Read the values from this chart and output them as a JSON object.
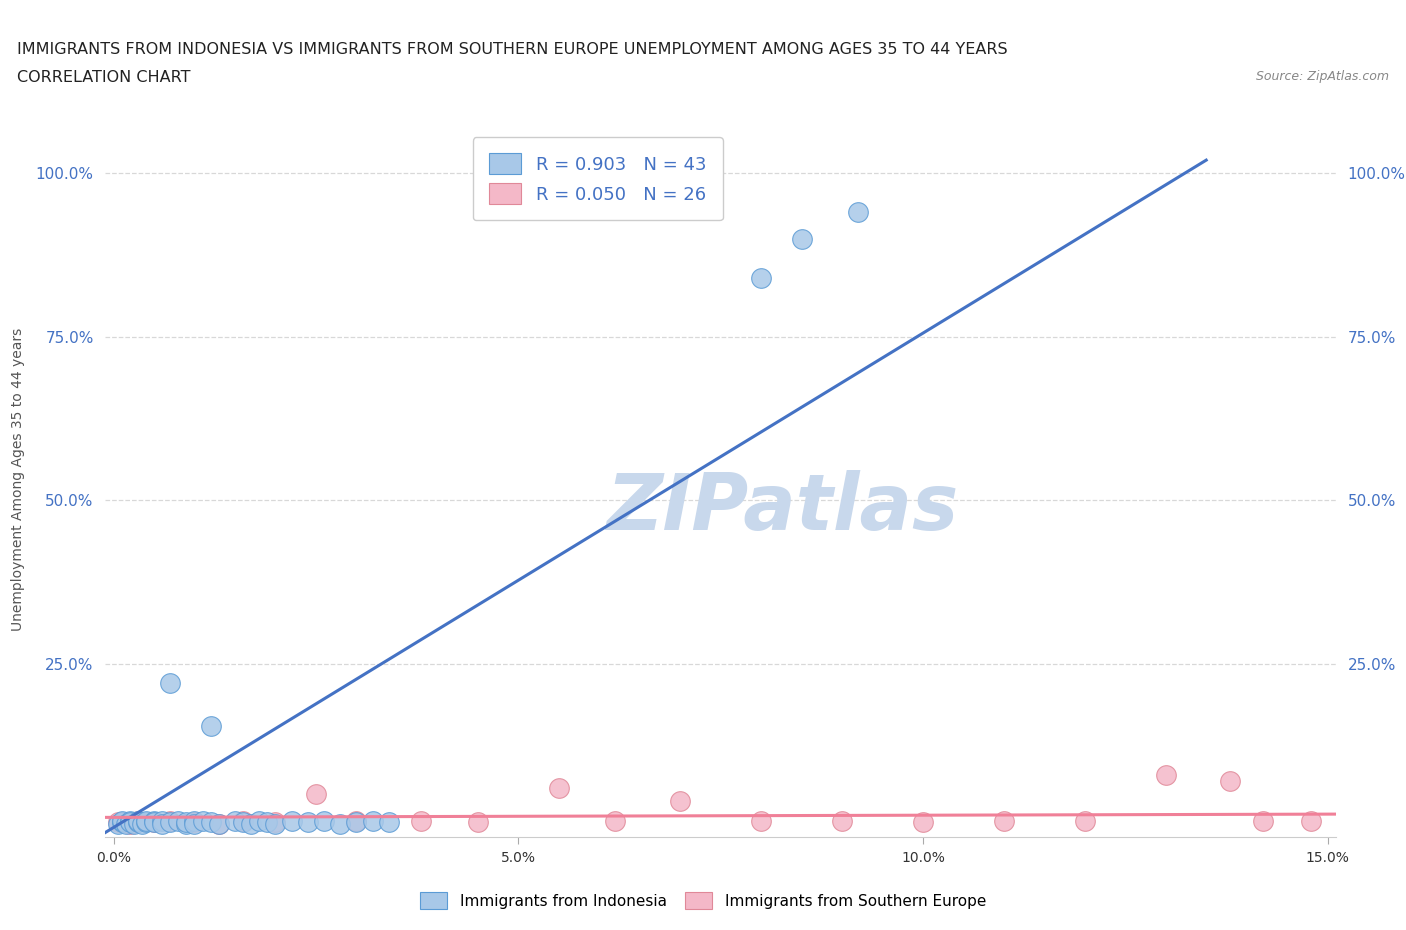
{
  "title_line1": "IMMIGRANTS FROM INDONESIA VS IMMIGRANTS FROM SOUTHERN EUROPE UNEMPLOYMENT AMONG AGES 35 TO 44 YEARS",
  "title_line2": "CORRELATION CHART",
  "source_text": "Source: ZipAtlas.com",
  "ylabel": "Unemployment Among Ages 35 to 44 years",
  "xlim": [
    -0.001,
    0.151
  ],
  "ylim": [
    -0.015,
    1.08
  ],
  "xtick_vals": [
    0.0,
    0.05,
    0.1,
    0.15
  ],
  "xtick_labels": [
    "0.0%",
    "5.0%",
    "10.0%",
    "15.0%"
  ],
  "ytick_vals": [
    0.25,
    0.5,
    0.75,
    1.0
  ],
  "ytick_labels": [
    "25.0%",
    "50.0%",
    "75.0%",
    "100.0%"
  ],
  "R_indonesia": 0.903,
  "N_indonesia": 43,
  "R_s_europe": 0.05,
  "N_s_europe": 26,
  "indonesia_fill": "#a8c8e8",
  "indonesia_edge": "#5b9bd5",
  "s_europe_fill": "#f4b8c8",
  "s_europe_edge": "#e08898",
  "indonesia_line_color": "#4472c4",
  "s_europe_line_color": "#f08098",
  "watermark_text": "ZIPatlas",
  "watermark_color": "#c8d8ec",
  "legend_label_indonesia": "Immigrants from Indonesia",
  "legend_label_s_europe": "Immigrants from Southern Europe",
  "indonesia_x": [
    0.0005,
    0.001,
    0.001,
    0.0015,
    0.002,
    0.002,
    0.0025,
    0.003,
    0.003,
    0.0035,
    0.004,
    0.004,
    0.005,
    0.005,
    0.006,
    0.006,
    0.007,
    0.008,
    0.009,
    0.009,
    0.01,
    0.01,
    0.011,
    0.012,
    0.013,
    0.015,
    0.016,
    0.017,
    0.018,
    0.019,
    0.02,
    0.022,
    0.024,
    0.026,
    0.028,
    0.03,
    0.032,
    0.034,
    0.007,
    0.012,
    0.08,
    0.085,
    0.092
  ],
  "indonesia_y": [
    0.005,
    0.008,
    0.01,
    0.005,
    0.01,
    0.008,
    0.005,
    0.008,
    0.01,
    0.005,
    0.008,
    0.01,
    0.01,
    0.008,
    0.01,
    0.005,
    0.008,
    0.01,
    0.005,
    0.008,
    0.01,
    0.005,
    0.01,
    0.008,
    0.005,
    0.01,
    0.008,
    0.005,
    0.01,
    0.008,
    0.005,
    0.01,
    0.008,
    0.01,
    0.005,
    0.008,
    0.01,
    0.008,
    0.22,
    0.155,
    0.84,
    0.9,
    0.94
  ],
  "s_europe_x": [
    0.0005,
    0.001,
    0.002,
    0.003,
    0.005,
    0.007,
    0.01,
    0.013,
    0.016,
    0.02,
    0.025,
    0.03,
    0.038,
    0.045,
    0.055,
    0.062,
    0.07,
    0.08,
    0.09,
    0.1,
    0.11,
    0.12,
    0.13,
    0.138,
    0.142,
    0.148
  ],
  "s_europe_y": [
    0.008,
    0.008,
    0.005,
    0.01,
    0.008,
    0.01,
    0.008,
    0.005,
    0.01,
    0.008,
    0.05,
    0.01,
    0.01,
    0.008,
    0.06,
    0.01,
    0.04,
    0.01,
    0.01,
    0.008,
    0.01,
    0.01,
    0.08,
    0.07,
    0.01,
    0.01
  ],
  "indo_trend_x": [
    -0.001,
    0.135
  ],
  "indo_trend_y": [
    -0.008,
    1.02
  ],
  "eur_trend_x": [
    -0.001,
    0.151
  ],
  "eur_trend_y": [
    0.015,
    0.02
  ],
  "background_color": "#ffffff",
  "grid_color": "#d8d8d8",
  "title_fontsize": 11.5,
  "legend_fontsize": 13
}
